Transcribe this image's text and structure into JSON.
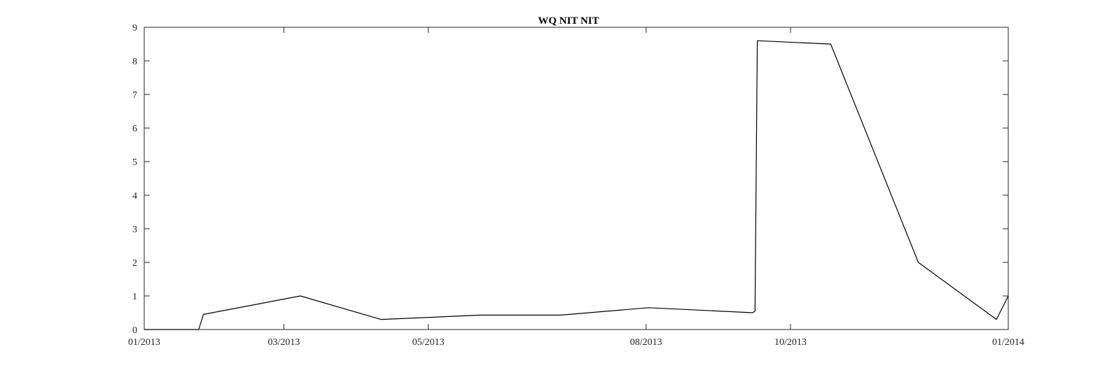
{
  "chart_data": {
    "type": "line",
    "title": "WQ NIT NIT",
    "xlabel": "",
    "ylabel": "",
    "x_range": [
      "2013-01-01",
      "2014-01-01"
    ],
    "ylim": [
      0,
      9
    ],
    "grid": false,
    "x_ticks": [
      {
        "date": "2013-01-01",
        "label": "01/2013"
      },
      {
        "date": "2013-03-01",
        "label": "03/2013"
      },
      {
        "date": "2013-05-01",
        "label": "05/2013"
      },
      {
        "date": "2013-08-01",
        "label": "08/2013"
      },
      {
        "date": "2013-10-01",
        "label": "10/2013"
      },
      {
        "date": "2014-01-01",
        "label": "01/2014"
      }
    ],
    "y_ticks": [
      0,
      1,
      2,
      3,
      4,
      5,
      6,
      7,
      8,
      9
    ],
    "series": [
      {
        "color": "#000000",
        "x": [
          "2013-01-01",
          "2013-01-24",
          "2013-01-26",
          "2013-03-08",
          "2013-04-11",
          "2013-05-23",
          "2013-06-26",
          "2013-08-02",
          "2013-09-15",
          "2013-09-16",
          "2013-09-17",
          "2013-10-18",
          "2013-11-24",
          "2013-12-27",
          "2014-01-01"
        ],
        "y": [
          0,
          0,
          0.45,
          1.0,
          0.3,
          0.43,
          0.43,
          0.65,
          0.5,
          0.55,
          8.6,
          8.5,
          2.0,
          0.3,
          1.0
        ]
      }
    ]
  }
}
